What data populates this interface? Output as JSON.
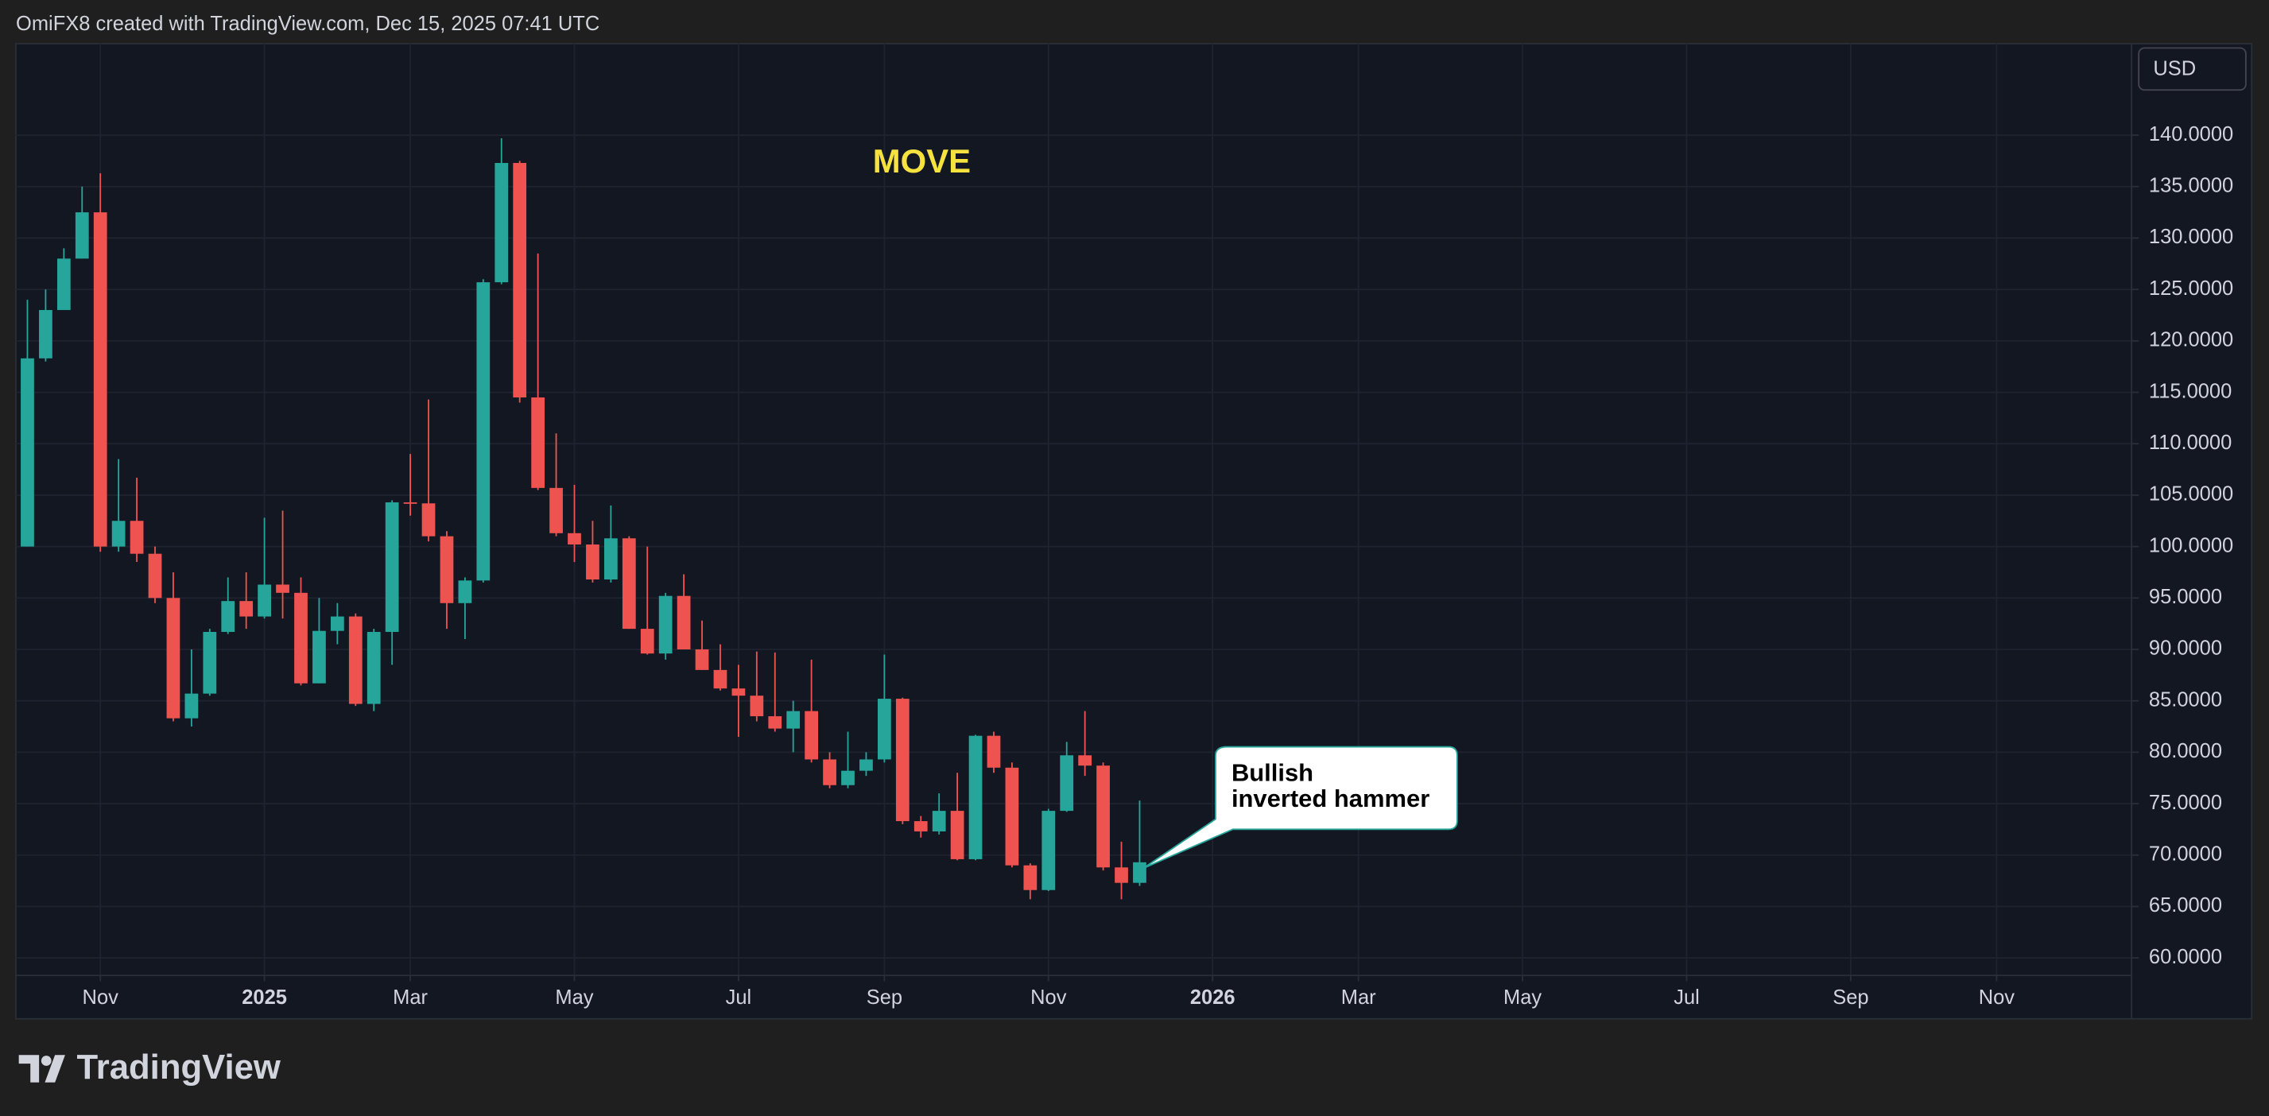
{
  "header": "OmiFX8 created with TradingView.com, Dec 15, 2025 07:41 UTC",
  "footer": "TradingView",
  "chart_data": {
    "type": "candlestick",
    "title": "MOVE",
    "currency": "USD",
    "up_color": "#26a69a",
    "down_color": "#ef5350",
    "grid": true,
    "open": [
      100,
      118.3,
      123,
      128,
      132.5,
      100,
      102.5,
      99.3,
      95,
      83.3,
      85.7,
      91.7,
      94.7,
      93.2,
      96.3,
      95.5,
      86.7,
      91.8,
      93.2,
      84.7,
      91.7,
      104.3,
      104.2,
      101,
      94.5,
      96.7,
      125.7,
      137.3,
      114.5,
      105.7,
      101.3,
      100.2,
      96.8,
      100.8,
      92,
      89.6,
      95.2,
      90,
      88,
      86.2,
      85.5,
      83.5,
      82.3,
      84,
      79.3,
      76.8,
      78.2,
      79.3,
      85.2,
      73.3,
      72.3,
      74.3,
      69.6,
      81.6,
      78.5,
      69,
      66.6,
      74.3,
      79.7,
      78.7,
      68.8,
      67.3
    ],
    "high": [
      124,
      125,
      129,
      135,
      136.3,
      108.5,
      106.7,
      100,
      97.5,
      90,
      92,
      97,
      97.5,
      102.8,
      103.5,
      97,
      95,
      94.5,
      93.5,
      92,
      104.5,
      109,
      114.3,
      101.5,
      97,
      126,
      139.7,
      137.5,
      128.5,
      111,
      106,
      102.5,
      104,
      101,
      100,
      95.5,
      97.3,
      92.8,
      90.5,
      88.5,
      89.8,
      89.7,
      85,
      89,
      80,
      82,
      80,
      89.5,
      85.3,
      73.8,
      76,
      78,
      81.7,
      82,
      79,
      69.2,
      74.5,
      81,
      84,
      79,
      71.3,
      75.3
    ],
    "low": [
      100,
      118,
      123,
      128,
      99.5,
      99.5,
      98.5,
      94.5,
      83,
      82.5,
      85.5,
      91.5,
      92,
      93,
      93,
      86.5,
      86.7,
      90.5,
      84.5,
      84,
      88.5,
      103,
      100.5,
      92,
      91,
      96.5,
      125.5,
      114,
      105.5,
      101,
      98.5,
      96.5,
      96.5,
      92,
      89.5,
      89,
      90,
      88,
      86,
      81.5,
      83,
      82,
      80,
      79,
      76.5,
      76.5,
      77.7,
      79,
      73,
      71.7,
      72,
      69.5,
      69.5,
      78,
      68.8,
      65.7,
      66.5,
      74.2,
      77.7,
      68.5,
      65.7,
      67
    ],
    "close": [
      118.3,
      123,
      128,
      132.5,
      100,
      102.5,
      99.3,
      95,
      83.3,
      85.7,
      91.7,
      94.7,
      93.2,
      96.3,
      95.5,
      86.7,
      91.8,
      93.2,
      84.7,
      91.7,
      104.3,
      104.2,
      101,
      94.5,
      96.7,
      125.7,
      137.3,
      114.5,
      105.7,
      101.3,
      100.2,
      96.8,
      100.8,
      92,
      89.6,
      95.2,
      90,
      88,
      86.2,
      85.5,
      83.5,
      82.3,
      84,
      79.3,
      76.8,
      78.2,
      79.3,
      85.2,
      73.3,
      72.3,
      74.3,
      69.6,
      81.6,
      78.5,
      69,
      66.6,
      74.3,
      79.7,
      78.7,
      68.8,
      67.3,
      69.3
    ],
    "xlim": [
      -0.63,
      115.4
    ],
    "xticks": [
      {
        "value": 4,
        "label": "Nov"
      },
      {
        "value": 13,
        "label": "2025"
      },
      {
        "value": 21,
        "label": "Mar"
      },
      {
        "value": 30,
        "label": "May"
      },
      {
        "value": 39,
        "label": "Jul"
      },
      {
        "value": 47,
        "label": "Sep"
      },
      {
        "value": 56,
        "label": "Nov"
      },
      {
        "value": 65,
        "label": "2026"
      },
      {
        "value": 73,
        "label": "Mar"
      },
      {
        "value": 82,
        "label": "May"
      },
      {
        "value": 91,
        "label": "Jul"
      },
      {
        "value": 100,
        "label": "Sep"
      },
      {
        "value": 108,
        "label": "Nov"
      }
    ],
    "ylim": [
      58.3,
      148.9
    ],
    "yticks": [
      {
        "value": 60,
        "label": "60.0000"
      },
      {
        "value": 65,
        "label": "65.0000"
      },
      {
        "value": 70,
        "label": "70.0000"
      },
      {
        "value": 75,
        "label": "75.0000"
      },
      {
        "value": 80,
        "label": "80.0000"
      },
      {
        "value": 85,
        "label": "85.0000"
      },
      {
        "value": 90,
        "label": "90.0000"
      },
      {
        "value": 95,
        "label": "95.0000"
      },
      {
        "value": 100,
        "label": "100.0000"
      },
      {
        "value": 105,
        "label": "105.0000"
      },
      {
        "value": 110,
        "label": "110.0000"
      },
      {
        "value": 115,
        "label": "115.0000"
      },
      {
        "value": 120,
        "label": "120.0000"
      },
      {
        "value": 125,
        "label": "125.0000"
      },
      {
        "value": 130,
        "label": "130.0000"
      },
      {
        "value": 135,
        "label": "135.0000"
      },
      {
        "value": 140,
        "label": "140.0000"
      }
    ],
    "annotation": [
      "Bullish",
      "inverted hammer"
    ]
  }
}
